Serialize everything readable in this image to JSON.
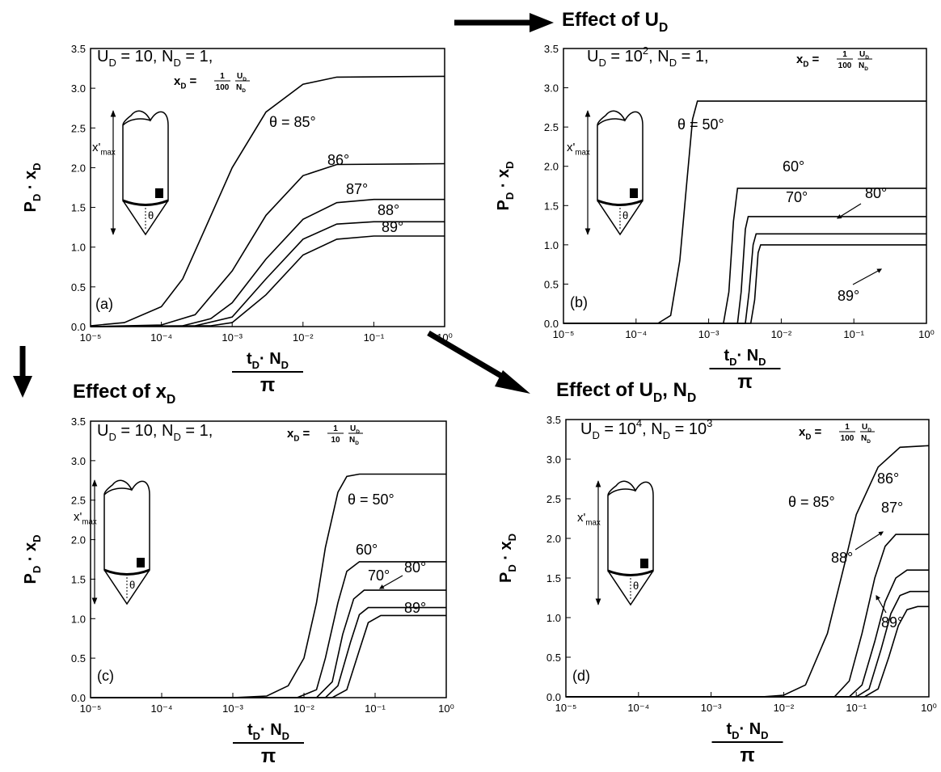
{
  "chart_data": [
    {
      "type": "line",
      "panel": "(a)",
      "xscale": "log",
      "params": "U_{D} = 10, N_{D} = 1,",
      "xd_label": "x_{D} =",
      "xd_fraction": [
        "1",
        "100"
      ],
      "xd_ratio": [
        "U_{D}",
        "N_{D}"
      ],
      "inset": {
        "length_label": "x'_{max}",
        "angle_label": "θ"
      },
      "ylabel": "P_{D} · x_{D}",
      "xlabel": "t_{D}· N_{D}",
      "xlabel_denominator": "π",
      "xlim": [
        1e-05,
        1
      ],
      "ylim": [
        0,
        3.5
      ],
      "xticks": [
        {
          "value": 1e-05,
          "label": "10⁻⁵"
        },
        {
          "value": 0.0001,
          "label": "10⁻⁴"
        },
        {
          "value": 0.001,
          "label": "10⁻³"
        },
        {
          "value": 0.01,
          "label": "10⁻²"
        },
        {
          "value": 0.1,
          "label": "10⁻¹"
        },
        {
          "value": 1,
          "label": "10⁰"
        }
      ],
      "yticks": [
        {
          "value": 0,
          "label": "0.0"
        },
        {
          "value": 0.5,
          "label": "0.5"
        },
        {
          "value": 1,
          "label": "1.0"
        },
        {
          "value": 1.5,
          "label": "1.5"
        },
        {
          "value": 2,
          "label": "2.0"
        },
        {
          "value": 2.5,
          "label": "2.5"
        },
        {
          "value": 3,
          "label": "3.0"
        },
        {
          "value": 3.5,
          "label": "3.5"
        }
      ],
      "series": [
        {
          "name": "θ = 85°",
          "color": "#000000",
          "x": [
            1e-05,
            3e-05,
            0.0001,
            0.0002,
            0.0004,
            0.001,
            0.003,
            0.01,
            0.03,
            1
          ],
          "values": [
            0.01,
            0.05,
            0.25,
            0.6,
            1.2,
            2.0,
            2.7,
            3.05,
            3.14,
            3.15
          ]
        },
        {
          "name": "86°",
          "color": "#000000",
          "x": [
            1e-05,
            0.0001,
            0.0003,
            0.001,
            0.003,
            0.01,
            0.03,
            1
          ],
          "values": [
            0,
            0.02,
            0.15,
            0.7,
            1.4,
            1.9,
            2.04,
            2.05
          ]
        },
        {
          "name": "87°",
          "color": "#000000",
          "x": [
            1e-05,
            0.0002,
            0.0005,
            0.001,
            0.003,
            0.01,
            0.03,
            0.1,
            1
          ],
          "values": [
            0,
            0.01,
            0.1,
            0.3,
            0.85,
            1.35,
            1.56,
            1.6,
            1.6
          ]
        },
        {
          "name": "88°",
          "color": "#000000",
          "x": [
            1e-05,
            0.0003,
            0.001,
            0.003,
            0.01,
            0.03,
            0.1,
            1
          ],
          "values": [
            0,
            0.01,
            0.12,
            0.6,
            1.1,
            1.29,
            1.32,
            1.32
          ]
        },
        {
          "name": "89°",
          "color": "#000000",
          "x": [
            1e-05,
            0.0005,
            0.001,
            0.003,
            0.01,
            0.03,
            0.1,
            1
          ],
          "values": [
            0,
            0.01,
            0.05,
            0.4,
            0.9,
            1.1,
            1.14,
            1.14
          ]
        }
      ]
    },
    {
      "type": "line",
      "title": "Effect of U_{D}",
      "panel": "(b)",
      "xscale": "log",
      "params": "U_{D} = 10^{2}, N_{D} = 1,",
      "xd_label": "x_{D} =",
      "xd_fraction": [
        "1",
        "100"
      ],
      "xd_ratio": [
        "U_{D}",
        "N_{D}"
      ],
      "inset": {
        "length_label": "x'_{max}",
        "angle_label": "θ"
      },
      "ylabel": "P_{D} · x_{D}",
      "xlabel": "t_{D}· N_{D}",
      "xlabel_denominator": "π",
      "xlim": [
        1e-05,
        1
      ],
      "ylim": [
        0,
        3.5
      ],
      "xticks": [
        {
          "value": 1e-05,
          "label": "10⁻⁵"
        },
        {
          "value": 0.0001,
          "label": "10⁻⁴"
        },
        {
          "value": 0.001,
          "label": "10⁻³"
        },
        {
          "value": 0.01,
          "label": "10⁻²"
        },
        {
          "value": 0.1,
          "label": "10⁻¹"
        },
        {
          "value": 1,
          "label": "10⁰"
        }
      ],
      "yticks": [
        {
          "value": 0,
          "label": "0.0"
        },
        {
          "value": 0.5,
          "label": "0.5"
        },
        {
          "value": 1,
          "label": "1.0"
        },
        {
          "value": 1.5,
          "label": "1.5"
        },
        {
          "value": 2,
          "label": "2.0"
        },
        {
          "value": 2.5,
          "label": "2.5"
        },
        {
          "value": 3,
          "label": "3.0"
        },
        {
          "value": 3.5,
          "label": "3.5"
        }
      ],
      "series": [
        {
          "name": "θ = 50°",
          "color": "#000000",
          "x": [
            1e-05,
            0.0002,
            0.0003,
            0.0004,
            0.0005,
            0.0006,
            0.0007,
            1
          ],
          "values": [
            0,
            0,
            0.1,
            0.8,
            1.8,
            2.6,
            2.83,
            2.83
          ]
        },
        {
          "name": "60°",
          "color": "#000000",
          "x": [
            1e-05,
            0.0016,
            0.0019,
            0.0022,
            0.0025,
            1
          ],
          "values": [
            0,
            0,
            0.4,
            1.3,
            1.72,
            1.72
          ]
        },
        {
          "name": "70°",
          "color": "#000000",
          "x": [
            1e-05,
            0.0025,
            0.0028,
            0.0032,
            0.0035,
            1
          ],
          "values": [
            0,
            0,
            0.4,
            1.2,
            1.36,
            1.36
          ]
        },
        {
          "name": "80°",
          "color": "#000000",
          "x": [
            1e-05,
            0.0032,
            0.0036,
            0.0041,
            0.0045,
            1
          ],
          "values": [
            0,
            0,
            0.4,
            1.0,
            1.14,
            1.14
          ]
        },
        {
          "name": "89°",
          "color": "#000000",
          "x": [
            1e-05,
            0.0038,
            0.0043,
            0.0048,
            0.0052,
            1
          ],
          "values": [
            0,
            0,
            0.3,
            0.9,
            1.0,
            1.0
          ]
        }
      ]
    },
    {
      "type": "line",
      "title": "Effect of x_{D}",
      "panel": "(c)",
      "xscale": "log",
      "params": "U_{D} = 10, N_{D} = 1,",
      "xd_label": "x_{D} =",
      "xd_fraction": [
        "1",
        "10"
      ],
      "xd_ratio": [
        "U_{D}",
        "N_{D}"
      ],
      "inset": {
        "length_label": "x'_{max}",
        "angle_label": "θ"
      },
      "ylabel": "P_{D} · x_{D}",
      "xlabel": "t_{D}· N_{D}",
      "xlabel_denominator": "π",
      "xlim": [
        1e-05,
        1
      ],
      "ylim": [
        0,
        3.5
      ],
      "xticks": [
        {
          "value": 1e-05,
          "label": "10⁻⁵"
        },
        {
          "value": 0.0001,
          "label": "10⁻⁴"
        },
        {
          "value": 0.001,
          "label": "10⁻³"
        },
        {
          "value": 0.01,
          "label": "10⁻²"
        },
        {
          "value": 0.1,
          "label": "10⁻¹"
        },
        {
          "value": 1,
          "label": "10⁰"
        }
      ],
      "yticks": [
        {
          "value": 0,
          "label": "0.0"
        },
        {
          "value": 0.5,
          "label": "0.5"
        },
        {
          "value": 1,
          "label": "1.0"
        },
        {
          "value": 1.5,
          "label": "1.5"
        },
        {
          "value": 2,
          "label": "2.0"
        },
        {
          "value": 2.5,
          "label": "2.5"
        },
        {
          "value": 3,
          "label": "3.0"
        },
        {
          "value": 3.5,
          "label": "3.5"
        }
      ],
      "series": [
        {
          "name": "θ = 50°",
          "color": "#000000",
          "x": [
            1e-05,
            0.001,
            0.003,
            0.006,
            0.01,
            0.015,
            0.02,
            0.03,
            0.04,
            0.06,
            1
          ],
          "values": [
            0,
            0,
            0.02,
            0.15,
            0.5,
            1.2,
            1.9,
            2.6,
            2.8,
            2.83,
            2.83
          ]
        },
        {
          "name": "60°",
          "color": "#000000",
          "x": [
            1e-05,
            0.008,
            0.015,
            0.02,
            0.03,
            0.04,
            0.06,
            1
          ],
          "values": [
            0,
            0,
            0.1,
            0.5,
            1.2,
            1.6,
            1.72,
            1.72
          ]
        },
        {
          "name": "70°",
          "color": "#000000",
          "x": [
            1e-05,
            0.015,
            0.025,
            0.035,
            0.05,
            0.07,
            1
          ],
          "values": [
            0,
            0,
            0.2,
            0.8,
            1.25,
            1.36,
            1.36
          ]
        },
        {
          "name": "80°",
          "color": "#000000",
          "x": [
            1e-05,
            0.02,
            0.03,
            0.045,
            0.06,
            0.08,
            1
          ],
          "values": [
            0,
            0,
            0.15,
            0.7,
            1.05,
            1.14,
            1.14
          ]
        },
        {
          "name": "89°",
          "color": "#000000",
          "x": [
            1e-05,
            0.025,
            0.04,
            0.06,
            0.08,
            0.12,
            1
          ],
          "values": [
            0,
            0,
            0.1,
            0.6,
            0.95,
            1.04,
            1.04
          ]
        }
      ]
    },
    {
      "type": "line",
      "title": "Effect of U_{D}, N_{D}",
      "panel": "(d)",
      "xscale": "log",
      "params": "U_{D} = 10^{4}, N_{D} = 10^{3}",
      "xd_label": "x_{D} =",
      "xd_fraction": [
        "1",
        "100"
      ],
      "xd_ratio": [
        "U_{D}",
        "N_{D}"
      ],
      "inset": {
        "length_label": "x'_{max}",
        "angle_label": "θ"
      },
      "ylabel": "P_{D} · x_{D}",
      "xlabel": "t_{D}· N_{D}",
      "xlabel_denominator": "π",
      "xlim": [
        1e-05,
        1
      ],
      "ylim": [
        0,
        3.5
      ],
      "xticks": [
        {
          "value": 1e-05,
          "label": "10⁻⁵"
        },
        {
          "value": 0.0001,
          "label": "10⁻⁴"
        },
        {
          "value": 0.001,
          "label": "10⁻³"
        },
        {
          "value": 0.01,
          "label": "10⁻²"
        },
        {
          "value": 0.1,
          "label": "10⁻¹"
        },
        {
          "value": 1,
          "label": "10⁰"
        }
      ],
      "yticks": [
        {
          "value": 0,
          "label": "0.0"
        },
        {
          "value": 0.5,
          "label": "0.5"
        },
        {
          "value": 1,
          "label": "1.0"
        },
        {
          "value": 1.5,
          "label": "1.5"
        },
        {
          "value": 2,
          "label": "2.0"
        },
        {
          "value": 2.5,
          "label": "2.5"
        },
        {
          "value": 3,
          "label": "3.0"
        },
        {
          "value": 3.5,
          "label": "3.5"
        }
      ],
      "series": [
        {
          "name": "θ = 85°",
          "color": "#000000",
          "x": [
            1e-05,
            0.005,
            0.01,
            0.02,
            0.04,
            0.07,
            0.1,
            0.2,
            0.4,
            1
          ],
          "values": [
            0,
            0,
            0.02,
            0.15,
            0.8,
            1.7,
            2.3,
            2.9,
            3.15,
            3.17
          ]
        },
        {
          "name": "86°",
          "color": "#000000",
          "x": [
            1e-05,
            0.05,
            0.08,
            0.12,
            0.18,
            0.25,
            0.35,
            1
          ],
          "values": [
            0,
            0,
            0.2,
            0.8,
            1.5,
            1.9,
            2.05,
            2.05
          ]
        },
        {
          "name": "87°",
          "color": "#000000",
          "x": [
            1e-05,
            0.08,
            0.12,
            0.18,
            0.25,
            0.35,
            0.5,
            1
          ],
          "values": [
            0,
            0,
            0.15,
            0.7,
            1.2,
            1.5,
            1.6,
            1.6
          ]
        },
        {
          "name": "88°",
          "color": "#000000",
          "x": [
            1e-05,
            0.1,
            0.15,
            0.22,
            0.3,
            0.4,
            0.55,
            1
          ],
          "values": [
            0,
            0,
            0.1,
            0.6,
            1.05,
            1.28,
            1.33,
            1.33
          ]
        },
        {
          "name": "89°",
          "color": "#000000",
          "x": [
            1e-05,
            0.13,
            0.2,
            0.28,
            0.38,
            0.5,
            0.7,
            1
          ],
          "values": [
            0,
            0,
            0.1,
            0.5,
            0.9,
            1.1,
            1.14,
            1.14
          ]
        }
      ]
    }
  ]
}
